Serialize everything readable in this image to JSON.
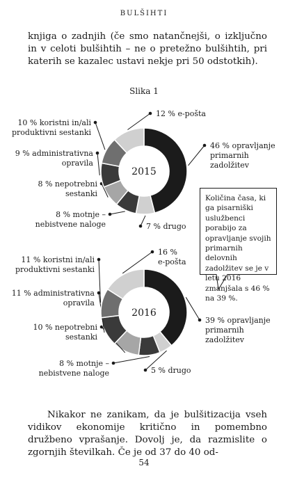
{
  "header": {
    "title": "BULŠIHTI"
  },
  "paragraph_top": "knjiga o zadnjih (če smo natančnejši, o izključno in v celoti bulšihtih – ne o pretežno bulšihtih, pri katerih se kazalec ustavi nekje pri 50 odstotkih).",
  "figure": {
    "title": "Slika 1"
  },
  "colors": {
    "black": "#1b1b1b",
    "dark": "#3a3a3a",
    "mid": "#6f6f6f",
    "light": "#a6a6a6",
    "lighter": "#d0d0d0"
  },
  "chart_data": [
    {
      "type": "pie",
      "center_label": "2015",
      "segments": [
        {
          "label": "opravljanje primarnih zadolžitev",
          "value": 46,
          "text": [
            "46 % opravljanje",
            "primarnih",
            "zadolžitev"
          ]
        },
        {
          "label": "drugo",
          "value": 7,
          "text": [
            "7 % drugo"
          ]
        },
        {
          "label": "motnje – nebistvene naloge",
          "value": 8,
          "text": [
            "8 % motnje –",
            "nebistvene naloge"
          ]
        },
        {
          "label": "nepotrebni sestanki",
          "value": 8,
          "text": [
            "8 % nepotrebni",
            "sestanki"
          ]
        },
        {
          "label": "administrativna opravila",
          "value": 9,
          "text": [
            "9 % administrativna",
            "opravila"
          ]
        },
        {
          "label": "koristni in/ali produktivni sestanki",
          "value": 10,
          "text": [
            "10 % koristni in/ali",
            "produktivni sestanki"
          ]
        },
        {
          "label": "e-pošta",
          "value": 12,
          "text": [
            "12 % e-pošta"
          ]
        }
      ]
    },
    {
      "type": "pie",
      "center_label": "2016",
      "segments": [
        {
          "label": "opravljanje primarnih zadolžitev",
          "value": 39,
          "text": [
            "39 % opravljanje",
            "primarnih",
            "zadolžitev"
          ]
        },
        {
          "label": "drugo",
          "value": 5,
          "text": [
            "5 % drugo"
          ]
        },
        {
          "label": "motnje – nebistvene naloge",
          "value": 8,
          "text": [
            "8 % motnje –",
            "nebistvene naloge"
          ]
        },
        {
          "label": "nepotrebni sestanki",
          "value": 10,
          "text": [
            "10 % nepotrebni",
            "sestanki"
          ]
        },
        {
          "label": "administrativna opravila",
          "value": 11,
          "text": [
            "11 % administrativna",
            "opravila"
          ]
        },
        {
          "label": "koristni in/ali produktivni sestanki",
          "value": 11,
          "text": [
            "11 % koristni in/ali",
            "produktivni sestanki"
          ]
        },
        {
          "label": "e-pošta",
          "value": 16,
          "text": [
            "16 %",
            "e-pošta"
          ]
        }
      ]
    }
  ],
  "callout": {
    "text": "Količina časa, ki ga pisarniški uslužbenci porabijo za opravljanje svojih primarnih delovnih zadolžitev se je v letu 2016 zmanjšala s 46 % na 39 %."
  },
  "paragraph_bottom": "Nikakor ne zanikam, da je bulšitizacija vseh vidikov ekonomije kritično in pomembno družbeno vprašanje. Dovolj je, da razmislite o zgornjih številkah. Če je od 37 do 40 od-",
  "page_number": "54"
}
